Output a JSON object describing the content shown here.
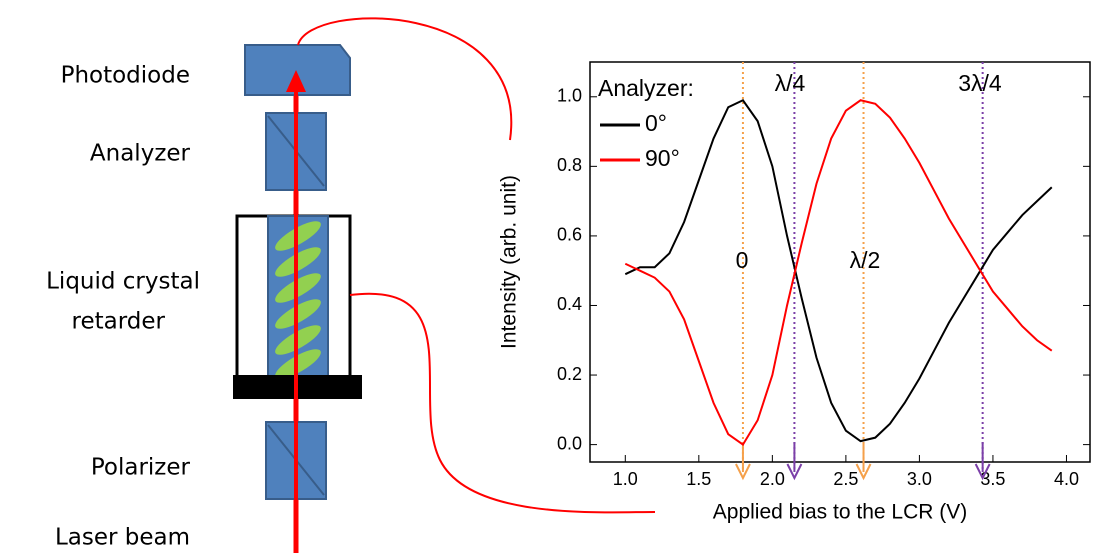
{
  "diagram": {
    "labels": [
      "Photodiode",
      "Analyzer",
      "Liquid crystal",
      "retarder",
      "Polarizer",
      "Laser beam"
    ]
  },
  "chart_data": {
    "type": "line",
    "xlabel": "Applied bias to the LCR (V)",
    "ylabel": "Intensity (arb. unit)",
    "legend_title": "Analyzer:",
    "x": [
      1.0,
      1.1,
      1.2,
      1.3,
      1.4,
      1.5,
      1.6,
      1.7,
      1.8,
      1.9,
      2.0,
      2.1,
      2.2,
      2.3,
      2.4,
      2.5,
      2.6,
      2.7,
      2.8,
      2.9,
      3.0,
      3.1,
      3.2,
      3.3,
      3.4,
      3.5,
      3.6,
      3.7,
      3.8,
      3.9
    ],
    "series": [
      {
        "name": "0°",
        "color": "#000000",
        "values": [
          0.49,
          0.51,
          0.51,
          0.55,
          0.64,
          0.76,
          0.88,
          0.97,
          0.99,
          0.93,
          0.8,
          0.6,
          0.42,
          0.25,
          0.12,
          0.04,
          0.01,
          0.02,
          0.06,
          0.12,
          0.19,
          0.27,
          0.35,
          0.42,
          0.49,
          0.56,
          0.61,
          0.66,
          0.7,
          0.74
        ]
      },
      {
        "name": "90°",
        "color": "#ff0000",
        "values": [
          0.52,
          0.5,
          0.48,
          0.44,
          0.36,
          0.24,
          0.12,
          0.03,
          0.0,
          0.07,
          0.2,
          0.4,
          0.58,
          0.75,
          0.88,
          0.96,
          0.99,
          0.98,
          0.94,
          0.88,
          0.81,
          0.73,
          0.65,
          0.58,
          0.51,
          0.44,
          0.39,
          0.34,
          0.3,
          0.27
        ]
      }
    ],
    "markers": [
      {
        "value": 1.8,
        "color": "#f5a04a"
      },
      {
        "value": 2.15,
        "color": "#7b3fa8"
      },
      {
        "value": 2.62,
        "color": "#f5a04a"
      },
      {
        "value": 3.43,
        "color": "#7b3fa8"
      }
    ],
    "annotations": [
      "λ/4",
      "3λ/4",
      "0",
      "λ/2"
    ],
    "xlim": [
      0.76,
      4.16
    ],
    "ylim": [
      -0.05,
      1.1
    ],
    "xticks": [
      {
        "value": 1.0,
        "label": "1.0"
      },
      1.5,
      {
        "value": 2.0,
        "label": "2.0"
      },
      2.5,
      {
        "value": 3.0,
        "label": "3.0"
      },
      3.5,
      {
        "value": 4.0,
        "label": "4.0"
      }
    ],
    "yticks": [
      {
        "value": 0.0,
        "label": "0.0"
      },
      0.2,
      0.4,
      0.6,
      0.8,
      {
        "value": 1.0,
        "label": "1.0"
      }
    ]
  }
}
